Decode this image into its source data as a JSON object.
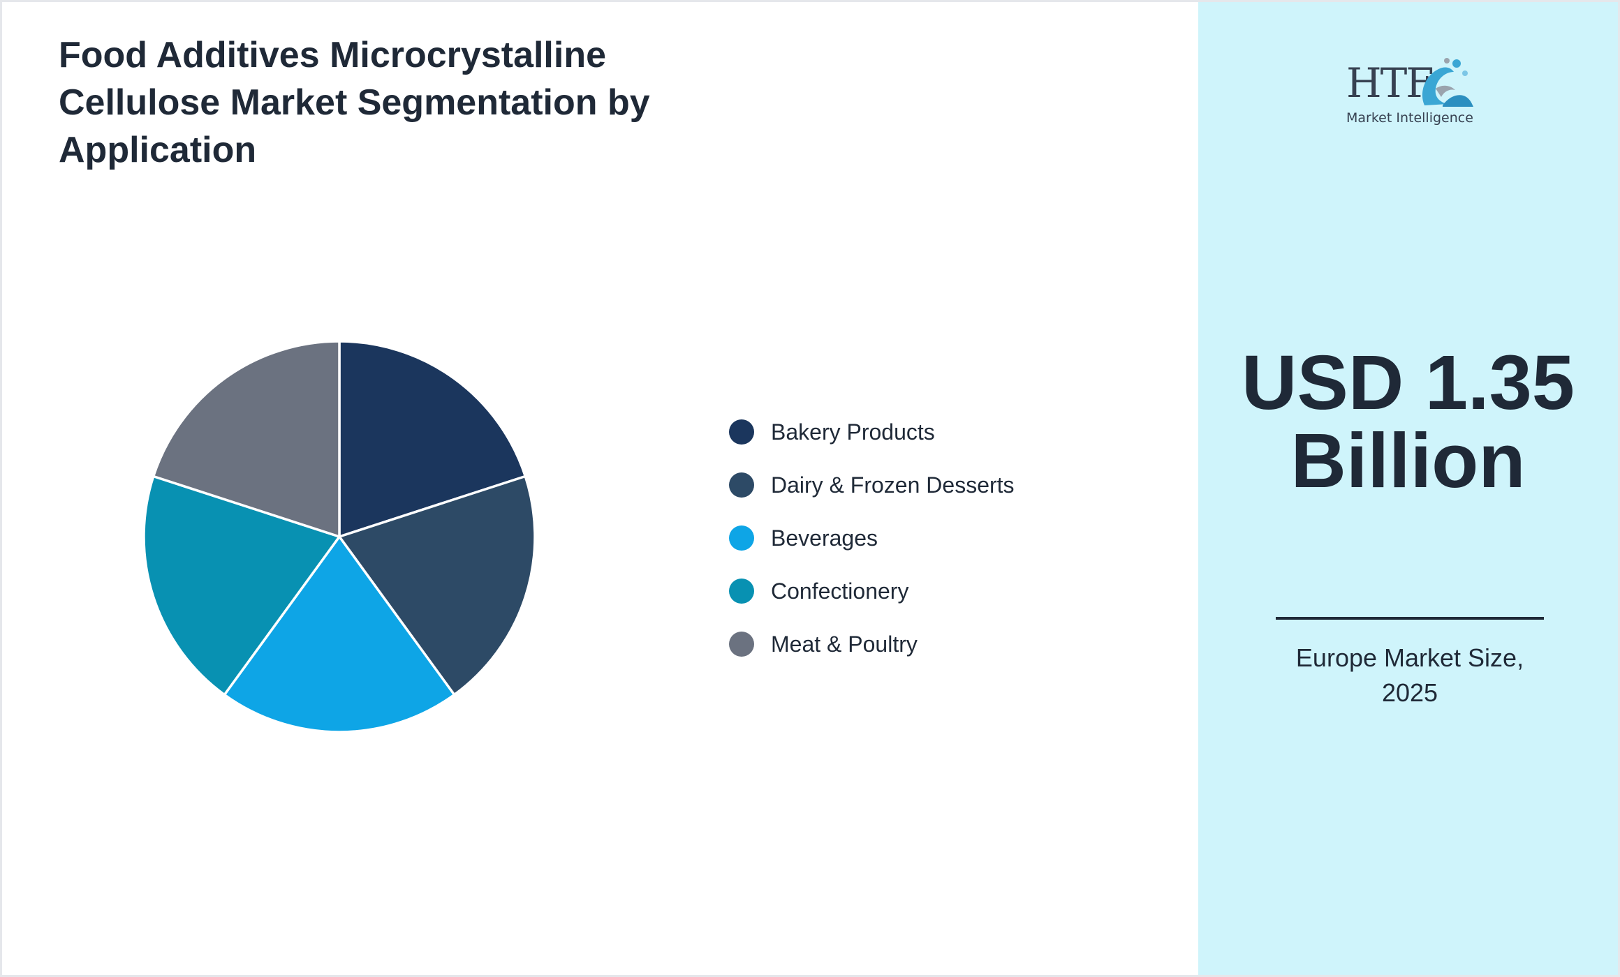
{
  "chart_data": {
    "type": "pie",
    "title": "Food Additives Microcrystalline Cellulose Market Segmentation by Application",
    "categories": [
      "Bakery Products",
      "Dairy & Frozen Desserts",
      "Beverages",
      "Confectionery",
      "Meat & Poultry"
    ],
    "values": [
      20,
      20,
      20,
      20,
      20
    ],
    "colors": [
      "#1b365d",
      "#2d4a66",
      "#0ea5e6",
      "#0891b2",
      "#6b7280"
    ],
    "legend_position": "right"
  },
  "summary": {
    "value": "USD 1.35 Billion",
    "caption": "Europe Market Size, 2025"
  },
  "logo": {
    "brand": "HTF",
    "tagline": "Market Intelligence",
    "icon": "htf-logo-icon"
  },
  "colors": {
    "side_panel": "#cff4fb",
    "text": "#1f2937"
  }
}
